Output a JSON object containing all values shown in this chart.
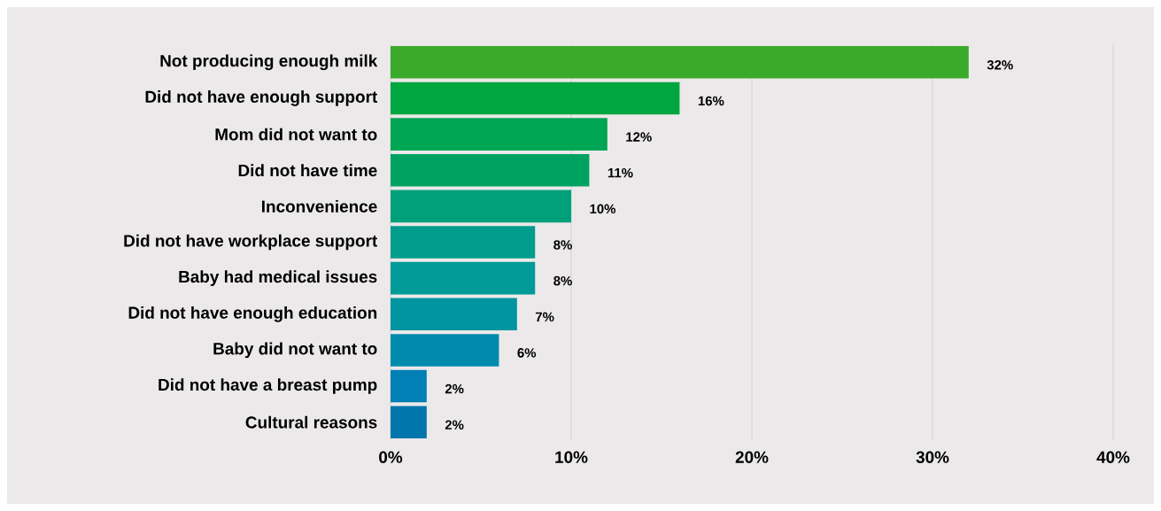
{
  "chart_data": {
    "type": "bar",
    "orientation": "horizontal",
    "categories": [
      "Not producing enough milk",
      "Did not have enough support",
      "Mom did not want to",
      "Did not have time",
      "Inconvenience",
      "Did not have workplace support",
      "Baby had medical issues",
      "Did not have enough education",
      "Baby did not want to",
      "Did not have a breast pump",
      "Cultural reasons"
    ],
    "values": [
      32,
      16,
      12,
      11,
      10,
      8,
      8,
      7,
      6,
      2,
      2
    ],
    "value_labels": [
      "32%",
      "16%",
      "12%",
      "11%",
      "10%",
      "8%",
      "8%",
      "7%",
      "6%",
      "2%",
      "2%"
    ],
    "colors": [
      "#3aaa2a",
      "#00a63f",
      "#00a653",
      "#00a262",
      "#00a07a",
      "#009c8c",
      "#009a98",
      "#0094a0",
      "#008bac",
      "#0080b4",
      "#0076ad"
    ],
    "xlim": [
      0,
      40
    ],
    "xticks": [
      {
        "value": 0,
        "label": "0%"
      },
      {
        "value": 10,
        "label": "10%"
      },
      {
        "value": 20,
        "label": "20%"
      },
      {
        "value": 30,
        "label": "30%"
      },
      {
        "value": 40,
        "label": "40%"
      }
    ],
    "grid": "x"
  }
}
